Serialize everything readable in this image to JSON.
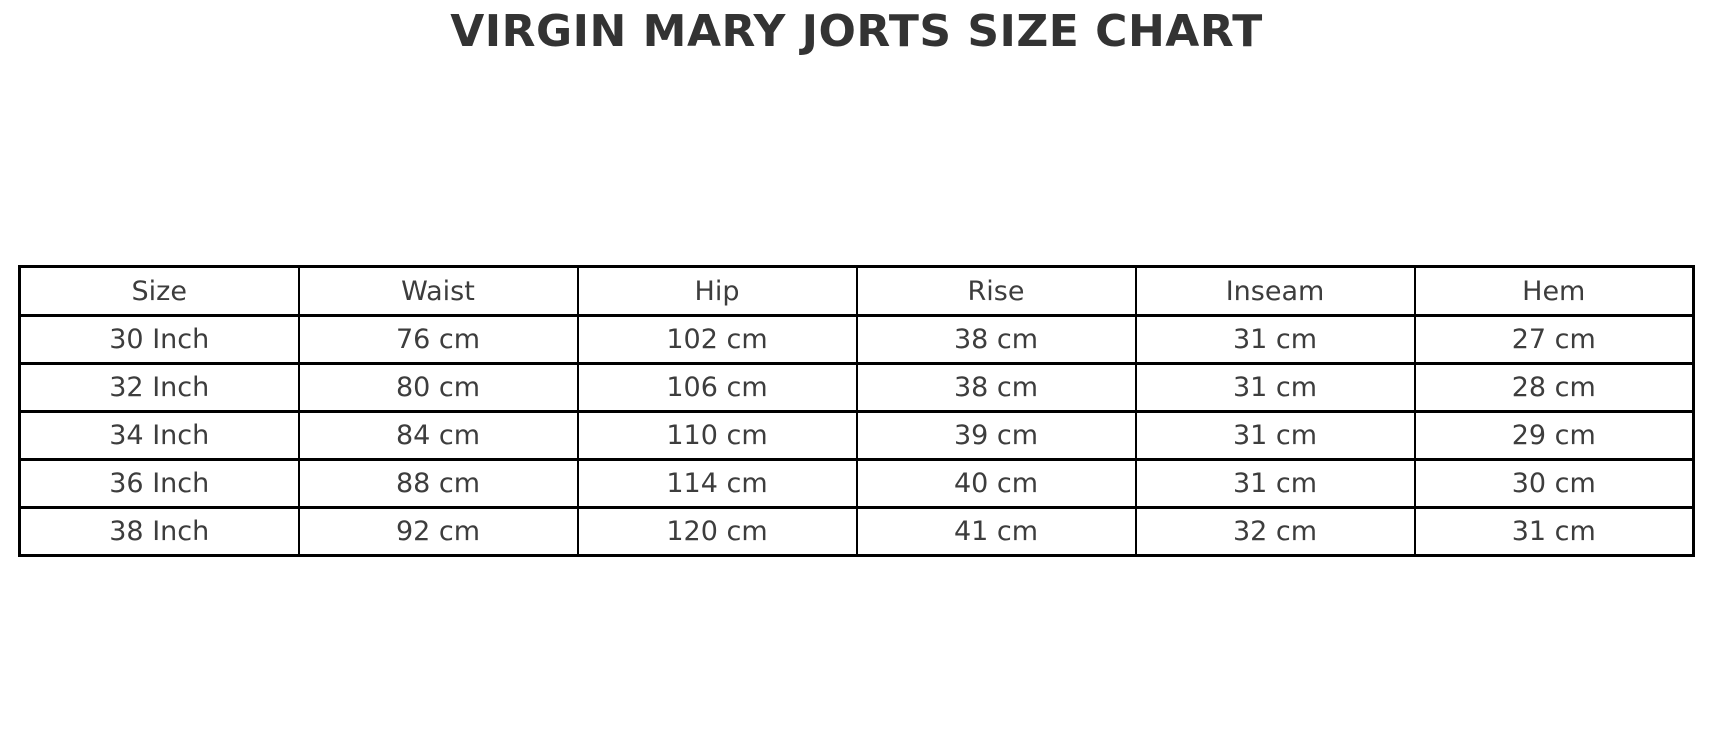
{
  "title": "VIRGIN MARY JORTS SIZE CHART",
  "colors": {
    "background": "#ffffff",
    "border": "#000000",
    "title_text": "#333333",
    "cell_text": "#3d3d3d"
  },
  "chart_data": {
    "type": "table",
    "title": "VIRGIN MARY JORTS SIZE CHART",
    "columns": [
      "Size",
      "Waist",
      "Hip",
      "Rise",
      "Inseam",
      "Hem"
    ],
    "rows": [
      [
        "30 Inch",
        "76 cm",
        "102 cm",
        "38 cm",
        "31 cm",
        "27 cm"
      ],
      [
        "32 Inch",
        "80 cm",
        "106 cm",
        "38 cm",
        "31 cm",
        "28 cm"
      ],
      [
        "34 Inch",
        "84 cm",
        "110 cm",
        "39 cm",
        "31 cm",
        "29 cm"
      ],
      [
        "36 Inch",
        "88 cm",
        "114 cm",
        "40 cm",
        "31 cm",
        "30 cm"
      ],
      [
        "38 Inch",
        "92 cm",
        "120 cm",
        "41 cm",
        "32 cm",
        "31 cm"
      ]
    ]
  }
}
